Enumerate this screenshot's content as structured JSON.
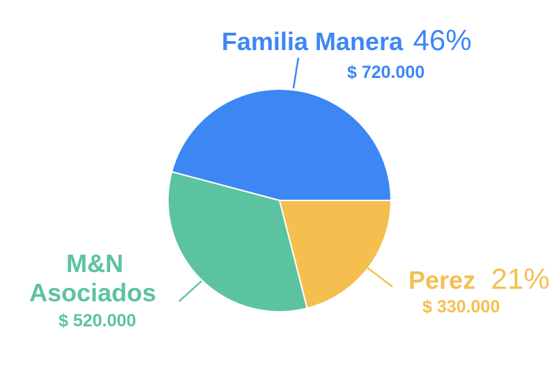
{
  "chart_data": {
    "type": "pie",
    "title": "",
    "slices": [
      {
        "name": "Familia Manera",
        "percent_label": "46%",
        "amount_label": "$ 720.000",
        "value": 720000,
        "color": "#3d87f5"
      },
      {
        "name": "Perez",
        "percent_label": "21%",
        "amount_label": "$ 330.000",
        "value": 330000,
        "color": "#f5bf4f"
      },
      {
        "name_line1": "M&N",
        "name_line2": "Asociados",
        "amount_label": "$ 520.000",
        "value": 520000,
        "color": "#5cc3a0"
      }
    ]
  }
}
